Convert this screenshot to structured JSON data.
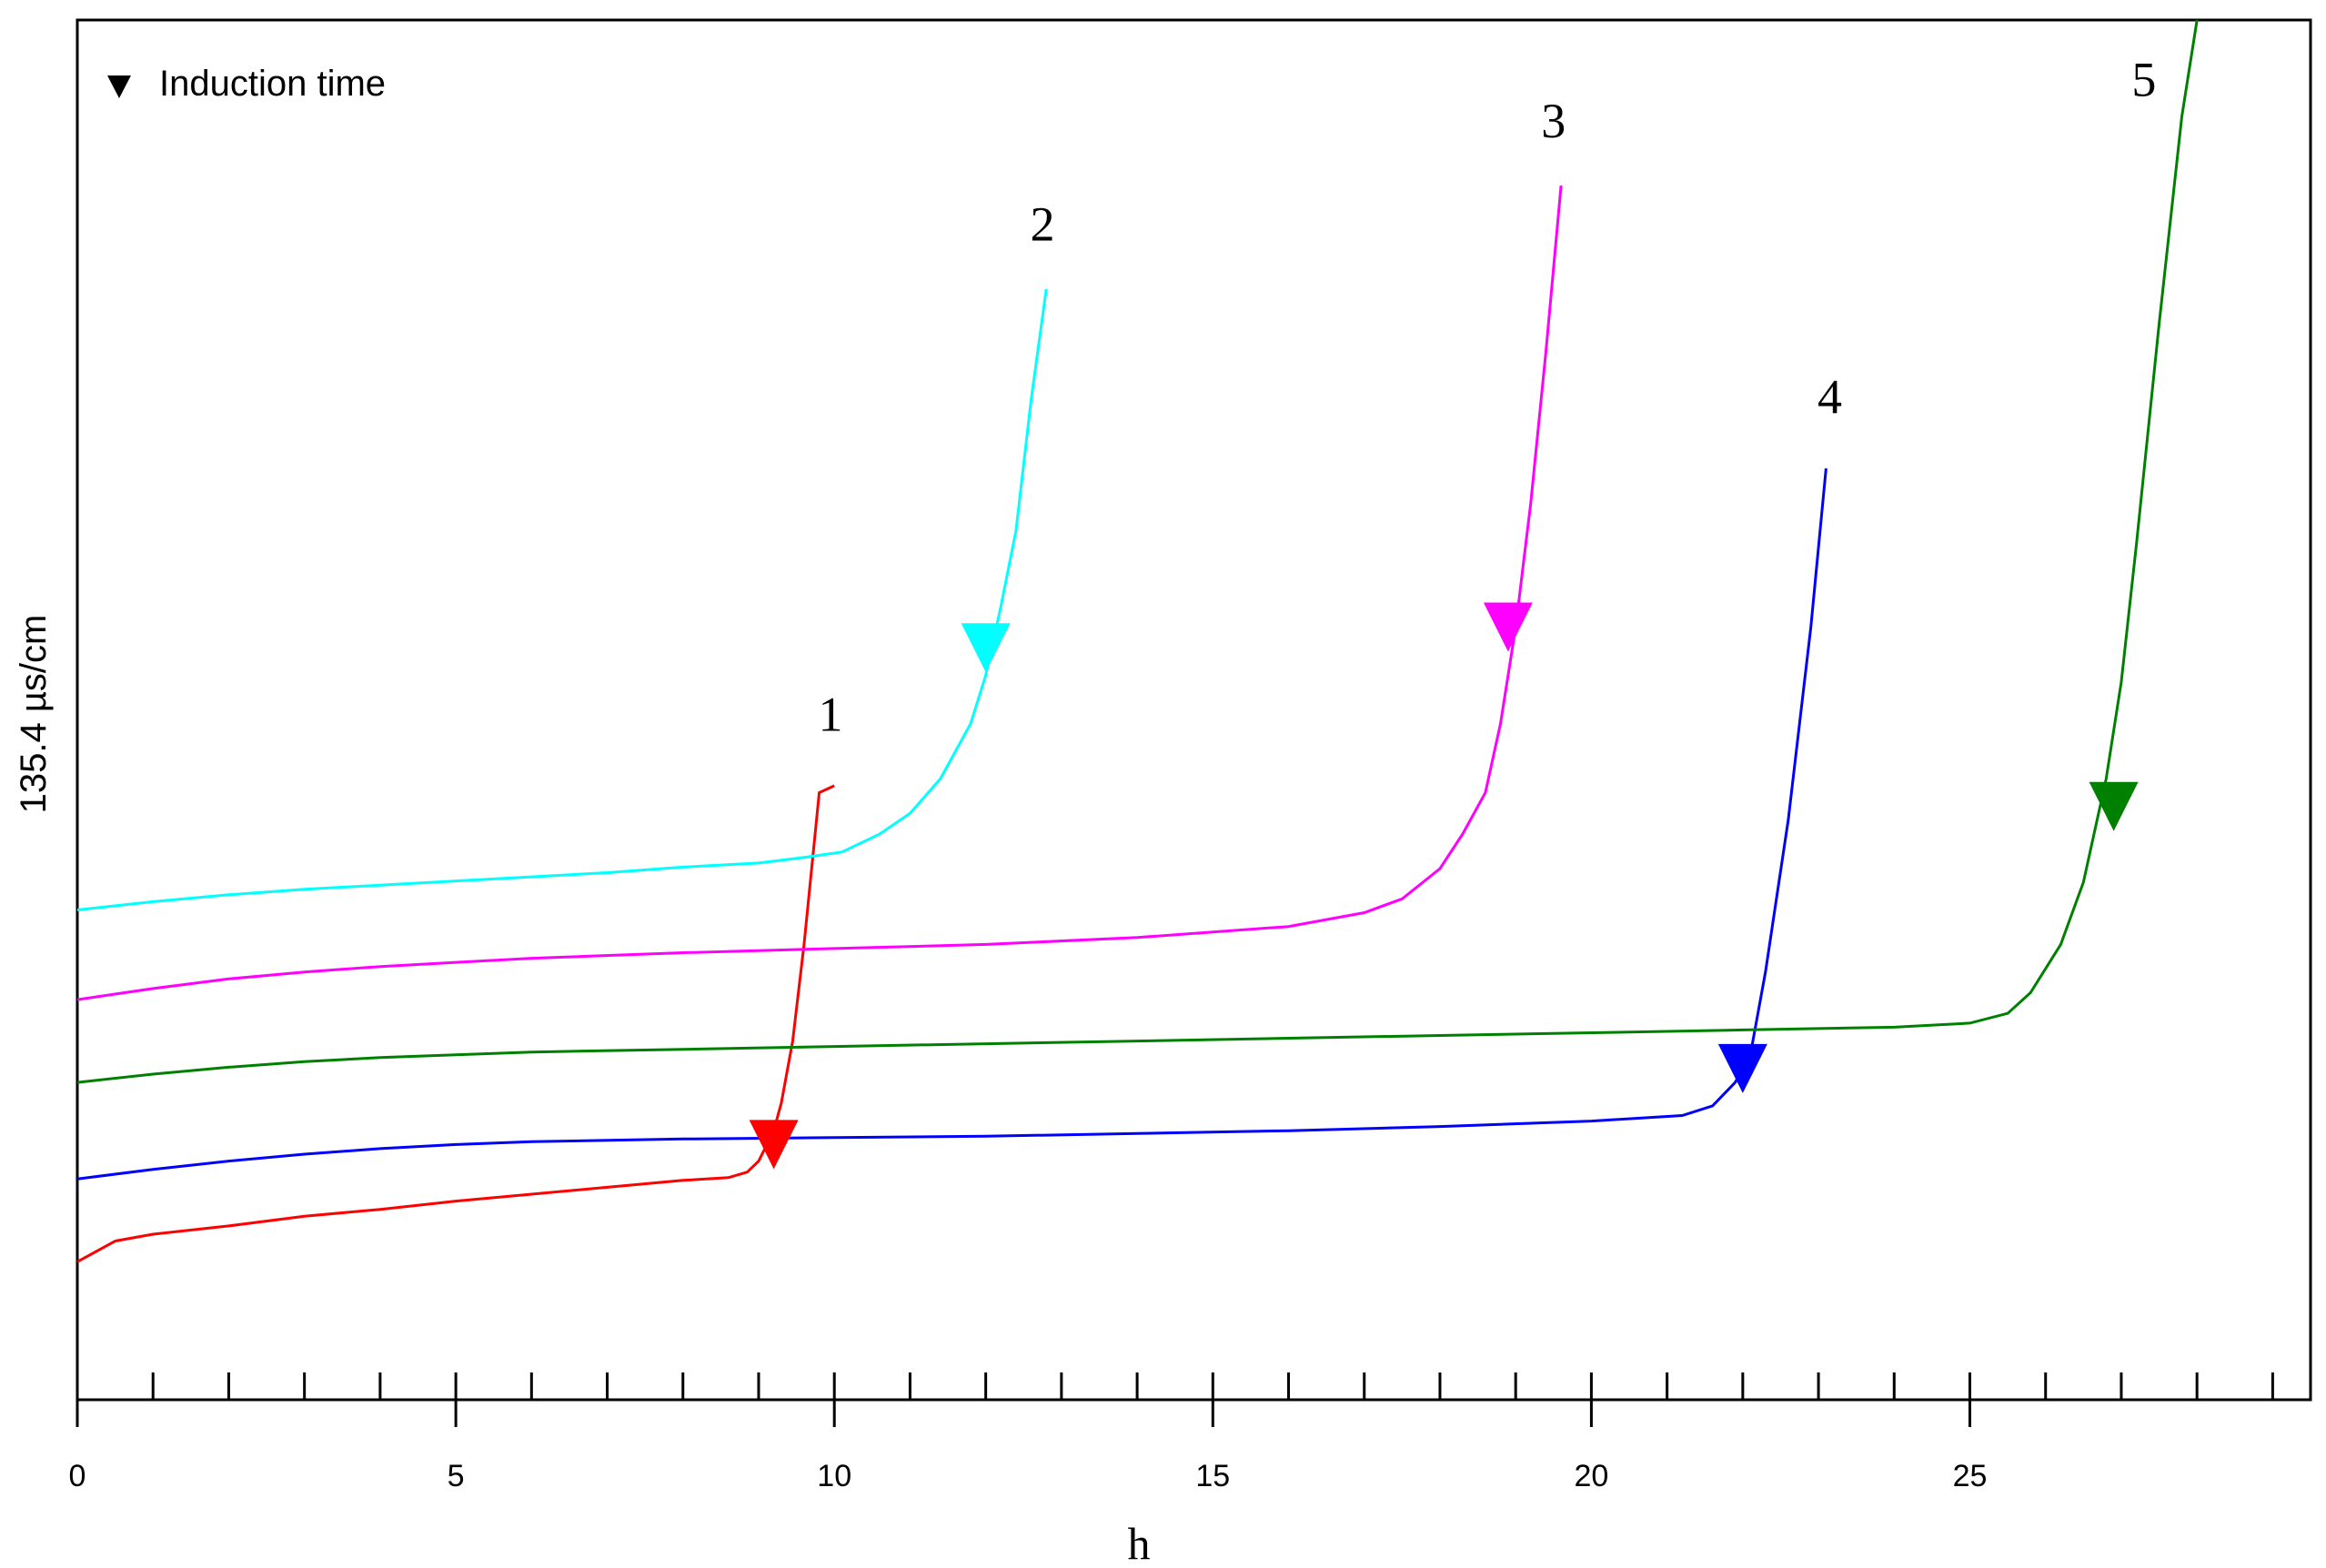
{
  "chart_data": {
    "type": "line",
    "xlabel": "h",
    "ylabel": "135.4 µs/cm",
    "xlim": [
      0,
      29.5
    ],
    "ylim": [
      0,
      100
    ],
    "x_ticks": [
      0,
      5,
      10,
      15,
      20,
      25
    ],
    "x_tick_labels": [
      "0",
      "5",
      "10",
      "15",
      "20",
      "25"
    ],
    "x_minor_step": 1,
    "grid": false,
    "legend": {
      "text": "Induction time",
      "marker": "down-triangle",
      "placement": "top-left"
    },
    "series": [
      {
        "name": "1",
        "color": "#ff0000",
        "points": [
          [
            0,
            10.0
          ],
          [
            0.5,
            11.5
          ],
          [
            1,
            12.0
          ],
          [
            2,
            12.6
          ],
          [
            3,
            13.3
          ],
          [
            4,
            13.8
          ],
          [
            5,
            14.4
          ],
          [
            6,
            14.9
          ],
          [
            7,
            15.4
          ],
          [
            8,
            15.9
          ],
          [
            8.6,
            16.1
          ],
          [
            8.85,
            16.5
          ],
          [
            9.0,
            17.3
          ],
          [
            9.2,
            19.5
          ],
          [
            9.3,
            21.5
          ],
          [
            9.45,
            26.0
          ],
          [
            9.6,
            33.0
          ],
          [
            9.8,
            44.0
          ],
          [
            10.0,
            44.5
          ]
        ],
        "induction_x": 9.2,
        "induction_y": 18.5,
        "label_x": 9.95,
        "label_y": 48.5
      },
      {
        "name": "2",
        "color": "#00ffff",
        "points": [
          [
            0,
            35.5
          ],
          [
            1,
            36.1
          ],
          [
            2,
            36.6
          ],
          [
            3,
            37.0
          ],
          [
            4,
            37.3
          ],
          [
            5,
            37.6
          ],
          [
            6,
            37.9
          ],
          [
            7,
            38.2
          ],
          [
            8,
            38.6
          ],
          [
            9,
            38.9
          ],
          [
            9.6,
            39.3
          ],
          [
            10.1,
            39.7
          ],
          [
            10.6,
            41.0
          ],
          [
            11.0,
            42.5
          ],
          [
            11.4,
            45.0
          ],
          [
            11.8,
            49.0
          ],
          [
            12.0,
            52.5
          ],
          [
            12.2,
            57.5
          ],
          [
            12.4,
            63.0
          ],
          [
            12.6,
            72.5
          ],
          [
            12.8,
            80.5
          ]
        ],
        "induction_x": 12.0,
        "induction_y": 54.5,
        "label_x": 12.75,
        "label_y": 84.0
      },
      {
        "name": "3",
        "color": "#ff00ff",
        "points": [
          [
            0,
            29.0
          ],
          [
            1,
            29.8
          ],
          [
            2,
            30.5
          ],
          [
            3,
            31.0
          ],
          [
            4,
            31.4
          ],
          [
            5,
            31.7
          ],
          [
            6,
            32.0
          ],
          [
            8,
            32.4
          ],
          [
            10,
            32.7
          ],
          [
            12,
            33.0
          ],
          [
            14,
            33.5
          ],
          [
            16,
            34.3
          ],
          [
            17,
            35.3
          ],
          [
            17.5,
            36.3
          ],
          [
            18,
            38.5
          ],
          [
            18.3,
            41.0
          ],
          [
            18.6,
            44.0
          ],
          [
            18.8,
            49.0
          ],
          [
            19.0,
            56.0
          ],
          [
            19.2,
            65.0
          ],
          [
            19.4,
            76.0
          ],
          [
            19.6,
            88.0
          ]
        ],
        "induction_x": 18.9,
        "induction_y": 56.0,
        "label_x": 19.5,
        "label_y": 91.5
      },
      {
        "name": "4",
        "color": "#0000ff",
        "points": [
          [
            0,
            16.0
          ],
          [
            1,
            16.7
          ],
          [
            2,
            17.3
          ],
          [
            3,
            17.8
          ],
          [
            4,
            18.2
          ],
          [
            5,
            18.5
          ],
          [
            6,
            18.7
          ],
          [
            8,
            18.9
          ],
          [
            10,
            19.0
          ],
          [
            12,
            19.1
          ],
          [
            14,
            19.3
          ],
          [
            16,
            19.5
          ],
          [
            18,
            19.8
          ],
          [
            20,
            20.2
          ],
          [
            21.2,
            20.6
          ],
          [
            21.6,
            21.3
          ],
          [
            21.9,
            23.0
          ],
          [
            22.1,
            25.0
          ],
          [
            22.3,
            31.0
          ],
          [
            22.6,
            42.0
          ],
          [
            22.9,
            56.0
          ],
          [
            23.1,
            67.5
          ]
        ],
        "induction_x": 22.0,
        "induction_y": 24.0,
        "label_x": 23.15,
        "label_y": 71.5
      },
      {
        "name": "5",
        "color": "#008000",
        "points": [
          [
            0,
            23.0
          ],
          [
            1,
            23.6
          ],
          [
            2,
            24.1
          ],
          [
            3,
            24.5
          ],
          [
            4,
            24.8
          ],
          [
            5,
            25.0
          ],
          [
            6,
            25.2
          ],
          [
            8,
            25.4
          ],
          [
            10,
            25.6
          ],
          [
            12,
            25.8
          ],
          [
            14,
            26.0
          ],
          [
            16,
            26.2
          ],
          [
            18,
            26.4
          ],
          [
            20,
            26.6
          ],
          [
            22,
            26.8
          ],
          [
            24,
            27.0
          ],
          [
            25,
            27.3
          ],
          [
            25.5,
            28.0
          ],
          [
            25.8,
            29.5
          ],
          [
            26.2,
            33.0
          ],
          [
            26.5,
            37.5
          ],
          [
            26.8,
            45.0
          ],
          [
            27.0,
            52.0
          ],
          [
            27.2,
            62.0
          ],
          [
            27.5,
            78.0
          ],
          [
            27.8,
            93.0
          ],
          [
            28.0,
            100.0
          ]
        ],
        "induction_x": 26.9,
        "induction_y": 43.0,
        "label_x": 27.3,
        "label_y": 94.5
      }
    ]
  }
}
